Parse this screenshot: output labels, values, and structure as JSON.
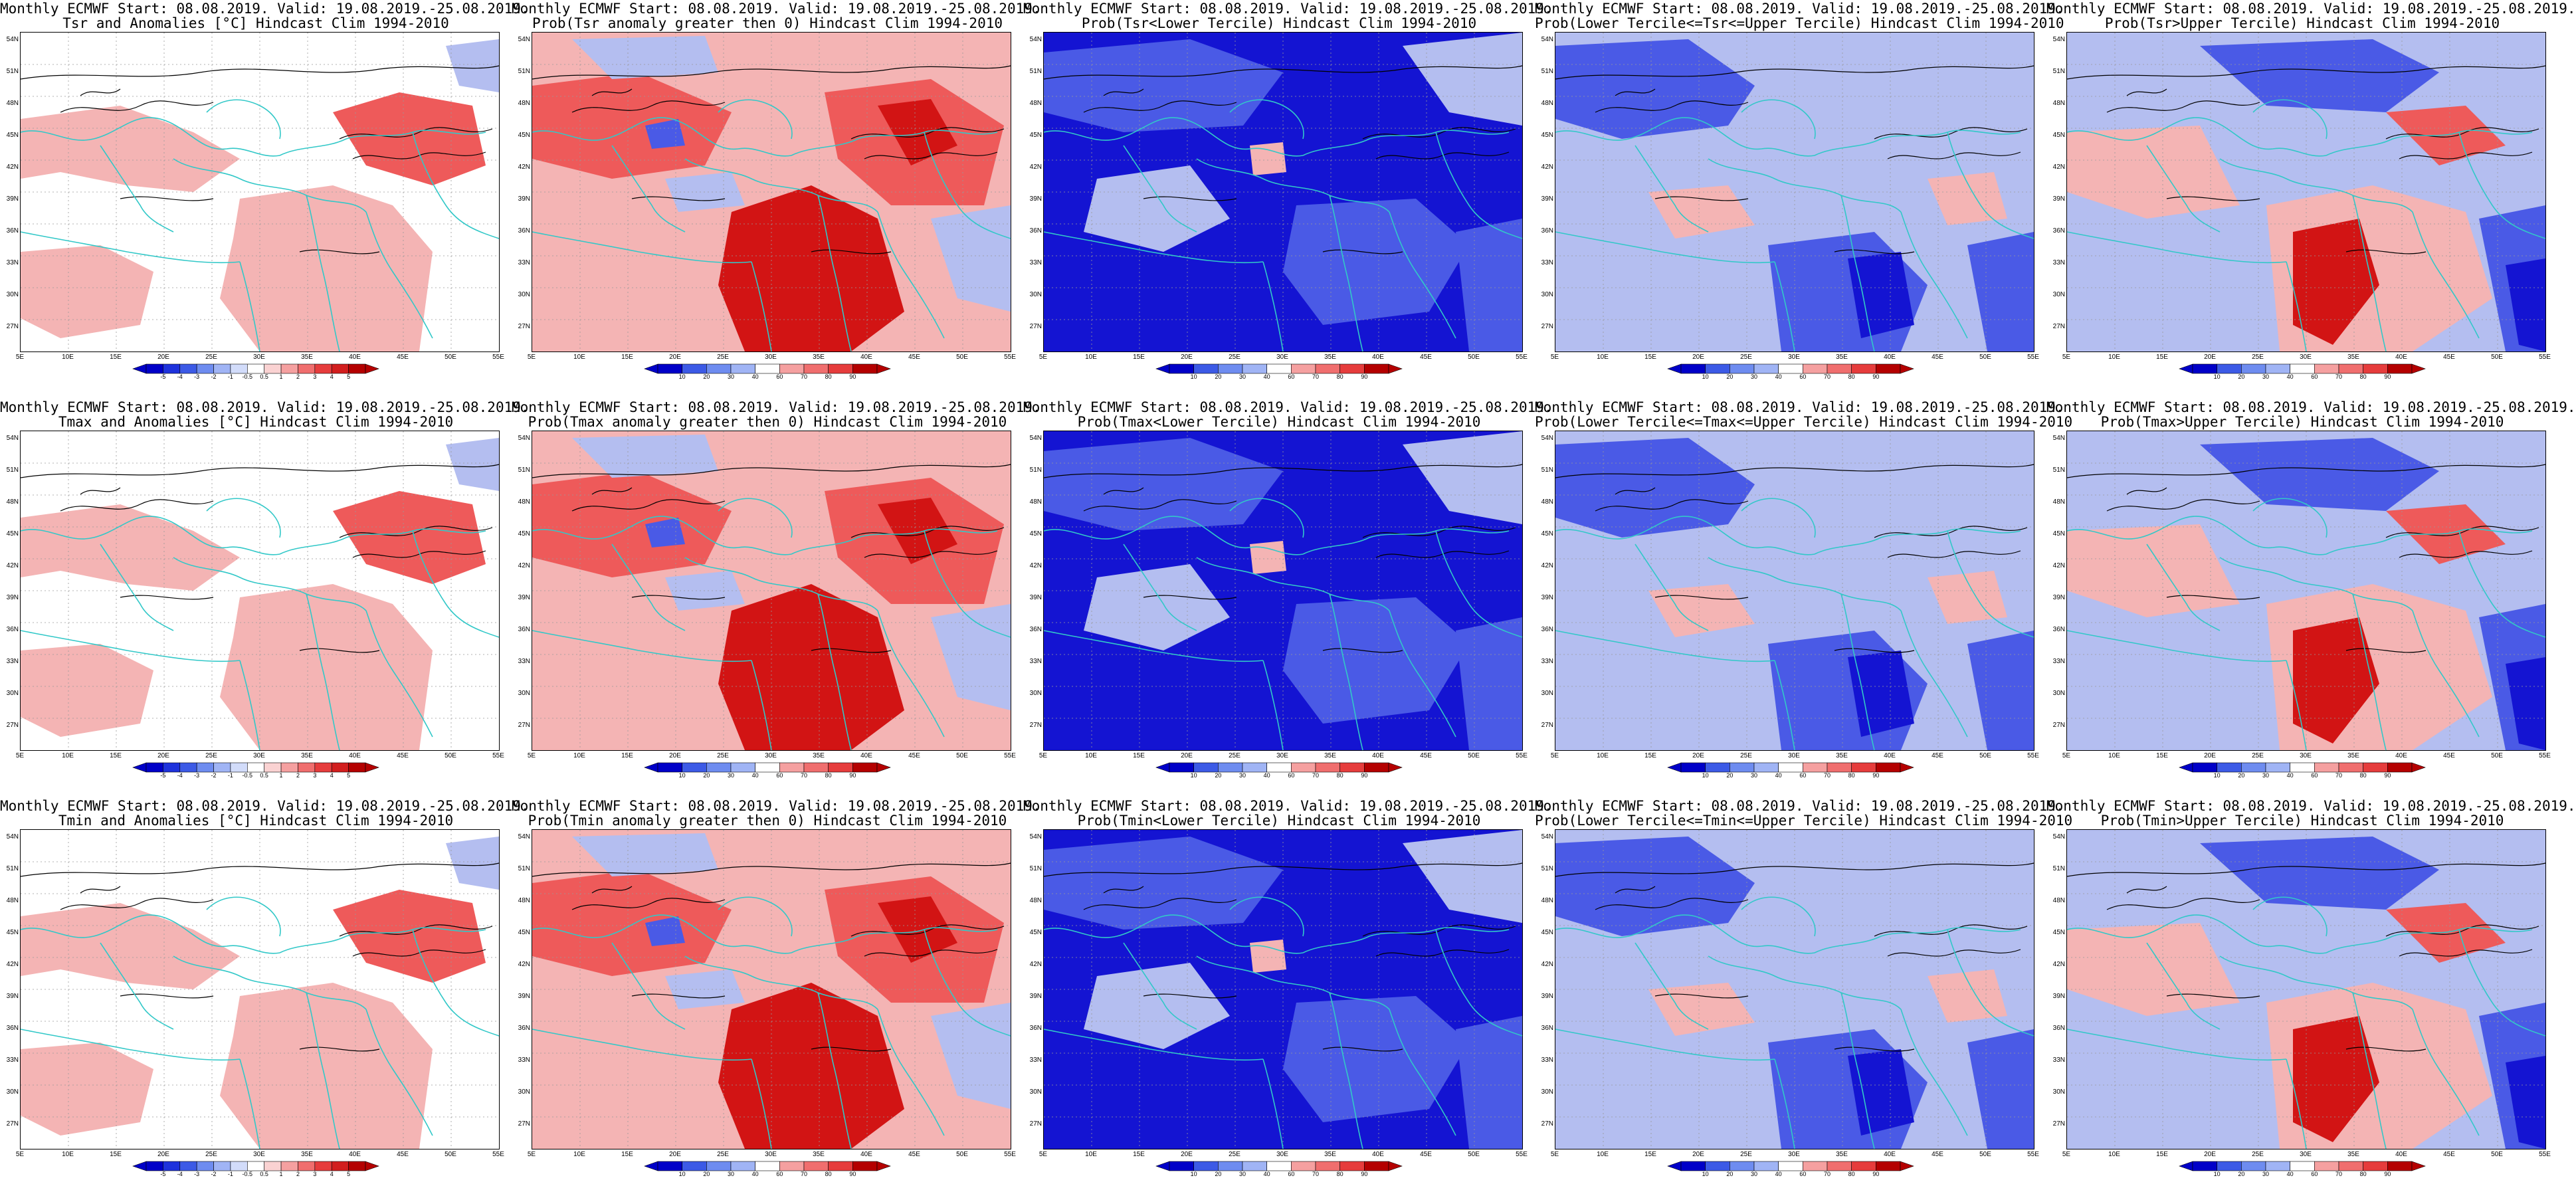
{
  "header_line": "Monthly ECMWF Start: 08.08.2019. Valid: 19.08.2019.-25.08.2019.",
  "colors": {
    "deep_blue": "#1414d2",
    "mid_blue": "#4a5ae6",
    "light_blue": "#b4bef0",
    "light_red": "#f4b4b4",
    "mid_red": "#ee5a5a",
    "deep_red": "#d21414",
    "coastline": "#32c8c8",
    "contour": "#000000"
  },
  "lat_labels": [
    "54N",
    "51N",
    "48N",
    "45N",
    "42N",
    "39N",
    "36N",
    "33N",
    "30N",
    "27N"
  ],
  "lon_labels": [
    "5E",
    "10E",
    "15E",
    "20E",
    "25E",
    "30E",
    "35E",
    "40E",
    "45E",
    "50E",
    "55E"
  ],
  "scales": {
    "anomaly": [
      "-5",
      "-4",
      "-3",
      "-2",
      "-1",
      "-0.5",
      "0.5",
      "1",
      "2",
      "3",
      "4",
      "5"
    ],
    "probability": [
      "10",
      "20",
      "30",
      "40",
      "60",
      "70",
      "80",
      "90"
    ]
  },
  "panels": [
    {
      "id": "tsr-anom",
      "title": "Tsr and Anomalies [°C] Hindcast Clim 1994-2010",
      "palette": "anom",
      "scale": "anomaly"
    },
    {
      "id": "tsr-prob-pos",
      "title": "Prob(Tsr anomaly greater then 0) Hindcast Clim 1994-2010",
      "palette": "warm",
      "scale": "probability"
    },
    {
      "id": "tsr-lower",
      "title": "Prob(Tsr<Lower Tercile) Hindcast Clim 1994-2010",
      "palette": "cold",
      "scale": "probability"
    },
    {
      "id": "tsr-middle",
      "title": "Prob(Lower Tercile<=Tsr<=Upper Tercile) Hindcast Clim 1994-2010",
      "palette": "mixed",
      "scale": "probability"
    },
    {
      "id": "tsr-upper",
      "title": "Prob(Tsr>Upper Tercile) Hindcast Clim 1994-2010",
      "palette": "upper",
      "scale": "probability"
    },
    {
      "id": "tmax-anom",
      "title": "Tmax and Anomalies [°C] Hindcast Clim 1994-2010",
      "palette": "anom",
      "scale": "anomaly"
    },
    {
      "id": "tmax-prob-pos",
      "title": "Prob(Tmax anomaly greater then 0) Hindcast Clim 1994-2010",
      "palette": "warm",
      "scale": "probability"
    },
    {
      "id": "tmax-lower",
      "title": "Prob(Tmax<Lower Tercile) Hindcast Clim 1994-2010",
      "palette": "cold",
      "scale": "probability"
    },
    {
      "id": "tmax-middle",
      "title": "Prob(Lower Tercile<=Tmax<=Upper Tercile) Hindcast Clim 1994-2010",
      "palette": "mixed",
      "scale": "probability"
    },
    {
      "id": "tmax-upper",
      "title": "Prob(Tmax>Upper Tercile) Hindcast Clim 1994-2010",
      "palette": "upper",
      "scale": "probability"
    },
    {
      "id": "tmin-anom",
      "title": "Tmin and Anomalies [°C] Hindcast Clim 1994-2010",
      "palette": "anom",
      "scale": "anomaly"
    },
    {
      "id": "tmin-prob-pos",
      "title": "Prob(Tmin anomaly greater then 0) Hindcast Clim 1994-2010",
      "palette": "warm",
      "scale": "probability"
    },
    {
      "id": "tmin-lower",
      "title": "Prob(Tmin<Lower Tercile) Hindcast Clim 1994-2010",
      "palette": "cold",
      "scale": "probability"
    },
    {
      "id": "tmin-middle",
      "title": "Prob(Lower Tercile<=Tmin<=Upper Tercile) Hindcast Clim 1994-2010",
      "palette": "mixed",
      "scale": "probability"
    },
    {
      "id": "tmin-upper",
      "title": "Prob(Tmin>Upper Tercile) Hindcast Clim 1994-2010",
      "palette": "upper",
      "scale": "probability"
    }
  ]
}
